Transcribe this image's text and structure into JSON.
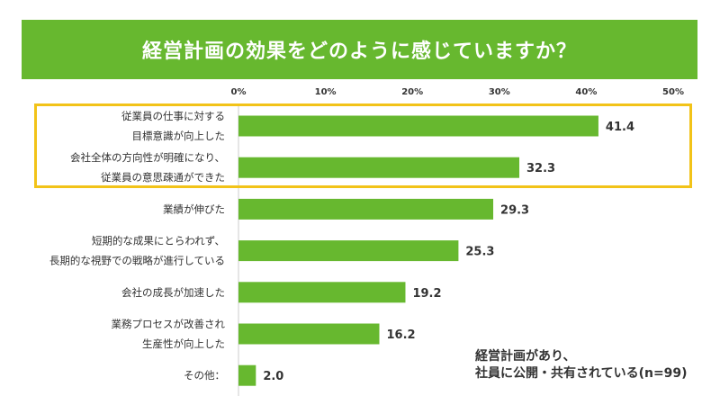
{
  "chart_data": {
    "type": "bar",
    "orientation": "horizontal",
    "title": "経営計画の効果をどのように感じていますか？",
    "categories": [
      [
        "従業員の仕事に対する",
        "目標意識が向上した"
      ],
      [
        "会社全体の方向性が明確になり、",
        "従業員の意思疎通ができた"
      ],
      [
        "業績が伸びた"
      ],
      [
        "短期的な成果にとらわれず、",
        "長期的な視野での戦略が進行している"
      ],
      [
        "会社の成長が加速した"
      ],
      [
        "業務プロセスが改善され",
        "生産性が向上した"
      ],
      [
        "その他："
      ]
    ],
    "values": [
      41.4,
      32.3,
      29.3,
      25.3,
      19.2,
      16.2,
      2.0
    ],
    "value_labels": [
      "41.4",
      "32.3",
      "29.3",
      "25.3",
      "19.2",
      "16.2",
      "2.0"
    ],
    "xlim": [
      0,
      50
    ],
    "ticks": [
      "0%",
      "10%",
      "20%",
      "30%",
      "40%",
      "50%"
    ],
    "tick_values": [
      0,
      10,
      20,
      30,
      40,
      50
    ],
    "highlighted_categories": [
      0,
      1
    ],
    "note": [
      "経営計画があり、",
      "社員に公開・共有されている(n=99)"
    ],
    "colors": {
      "bar": "#67b82f",
      "banner": "#67b82f",
      "highlight": "#f2c318",
      "text": "#333333"
    }
  }
}
